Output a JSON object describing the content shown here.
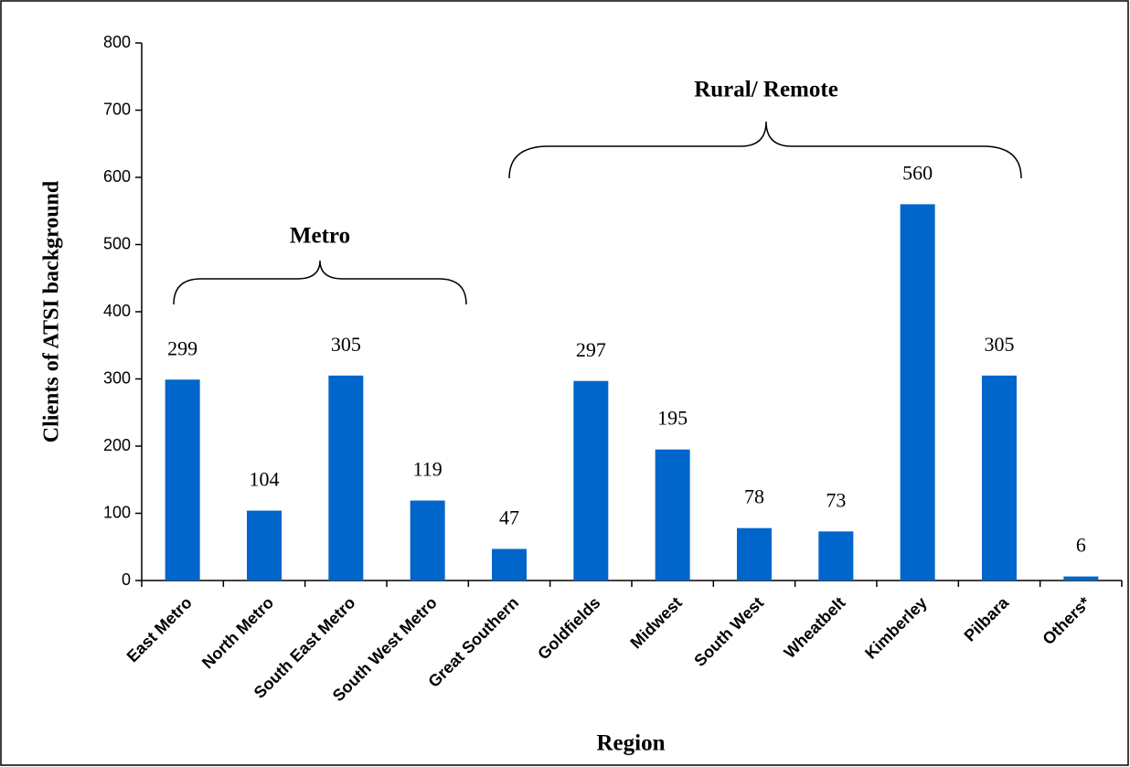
{
  "chart_data": {
    "type": "bar",
    "x_label": "Region",
    "y_label": "Clients of ATSI background",
    "annotations": [
      "Metro",
      "Rural/ Remote"
    ],
    "categories": [
      "East Metro",
      "North Metro",
      "South East Metro",
      "South West Metro",
      "Great Southern",
      "Goldfields",
      "Midwest",
      "South West",
      "Wheatbelt",
      "Kimberley",
      "Pilbara",
      "Others*"
    ],
    "values": [
      299,
      104,
      305,
      119,
      47,
      297,
      195,
      78,
      73,
      560,
      305,
      6
    ],
    "color": "#0066cc",
    "ylim": [
      0,
      800
    ],
    "yticks": [
      0,
      100,
      200,
      300,
      400,
      500,
      600,
      700,
      800
    ],
    "grid": false
  }
}
